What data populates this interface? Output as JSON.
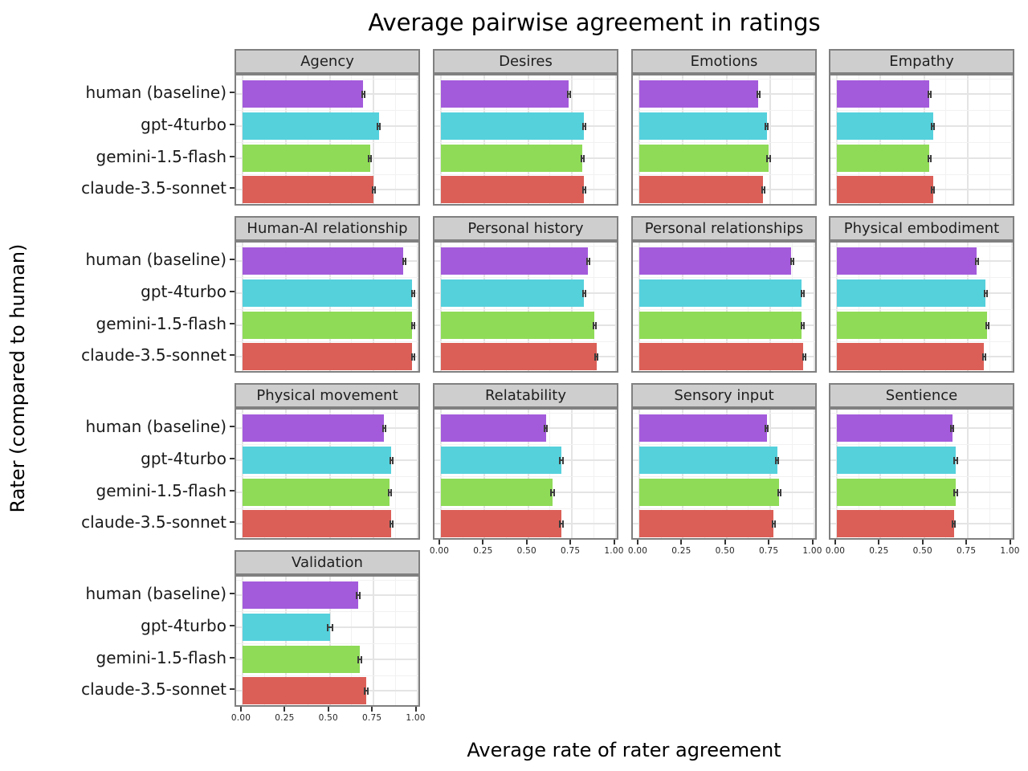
{
  "title": "Average pairwise agreement in ratings",
  "x_axis": {
    "title": "Average rate of rater agreement"
  },
  "y_axis": {
    "title": "Rater (compared to human)"
  },
  "palette": {
    "human (baseline)": "#a35bdb",
    "gpt-4turbo": "#55d1dc",
    "gemini-1.5-flash": "#8fdb57",
    "claude-3.5-sonnet": "#db5f57",
    "errorbar": "#3d3d3d",
    "strip_background": "#cecece",
    "panel_border": "#808080"
  },
  "chart_data": {
    "type": "bar",
    "orientation": "horizontal",
    "title": "Average pairwise agreement in ratings",
    "xlabel": "Average rate of rater agreement",
    "ylabel": "Rater (compared to human)",
    "xlim": [
      0,
      1
    ],
    "x_tick_values": [
      0,
      0.25,
      0.5,
      0.75,
      1
    ],
    "x_tick_labels": [
      "0.00",
      "0.25",
      "0.50",
      "0.75",
      "1.00"
    ],
    "grid": "major 0.25 / minor 0.125, light gray on white",
    "legend_position": "none",
    "categories": [
      "human (baseline)",
      "gpt-4turbo",
      "gemini-1.5-flash",
      "claude-3.5-sonnet"
    ],
    "category_colors": [
      "#a35bdb",
      "#55d1dc",
      "#8fdb57",
      "#db5f57"
    ],
    "facets_per_row": 4,
    "facets": [
      {
        "label": "Agency",
        "values": [
          0.69,
          0.78,
          0.73,
          0.75
        ],
        "errors": [
          0.01,
          0.012,
          0.012,
          0.012
        ]
      },
      {
        "label": "Desires",
        "values": [
          0.73,
          0.82,
          0.81,
          0.82
        ],
        "errors": [
          0.01,
          0.01,
          0.01,
          0.012
        ]
      },
      {
        "label": "Emotions",
        "values": [
          0.68,
          0.73,
          0.74,
          0.71
        ],
        "errors": [
          0.01,
          0.012,
          0.012,
          0.012
        ]
      },
      {
        "label": "Empathy",
        "values": [
          0.53,
          0.55,
          0.53,
          0.55
        ],
        "errors": [
          0.012,
          0.012,
          0.012,
          0.012
        ]
      },
      {
        "label": "Human-AI relationship",
        "values": [
          0.92,
          0.97,
          0.97,
          0.97
        ],
        "errors": [
          0.006,
          0.004,
          0.004,
          0.004
        ]
      },
      {
        "label": "Personal history",
        "values": [
          0.84,
          0.82,
          0.88,
          0.89
        ],
        "errors": [
          0.01,
          0.01,
          0.01,
          0.01
        ]
      },
      {
        "label": "Personal relationships",
        "values": [
          0.87,
          0.93,
          0.93,
          0.94
        ],
        "errors": [
          0.007,
          0.006,
          0.006,
          0.006
        ]
      },
      {
        "label": "Physical embodiment",
        "values": [
          0.8,
          0.85,
          0.86,
          0.84
        ],
        "errors": [
          0.01,
          0.009,
          0.009,
          0.009
        ]
      },
      {
        "label": "Physical movement",
        "values": [
          0.81,
          0.85,
          0.84,
          0.85
        ],
        "errors": [
          0.01,
          0.009,
          0.009,
          0.009
        ]
      },
      {
        "label": "Relatability",
        "values": [
          0.6,
          0.69,
          0.64,
          0.69
        ],
        "errors": [
          0.012,
          0.012,
          0.013,
          0.013
        ]
      },
      {
        "label": "Sensory input",
        "values": [
          0.73,
          0.79,
          0.8,
          0.77
        ],
        "errors": [
          0.011,
          0.011,
          0.011,
          0.013
        ]
      },
      {
        "label": "Sentience",
        "values": [
          0.66,
          0.68,
          0.68,
          0.67
        ],
        "errors": [
          0.012,
          0.013,
          0.013,
          0.012
        ]
      },
      {
        "label": "Validation",
        "values": [
          0.66,
          0.5,
          0.67,
          0.71
        ],
        "errors": [
          0.014,
          0.018,
          0.014,
          0.014
        ]
      }
    ]
  }
}
